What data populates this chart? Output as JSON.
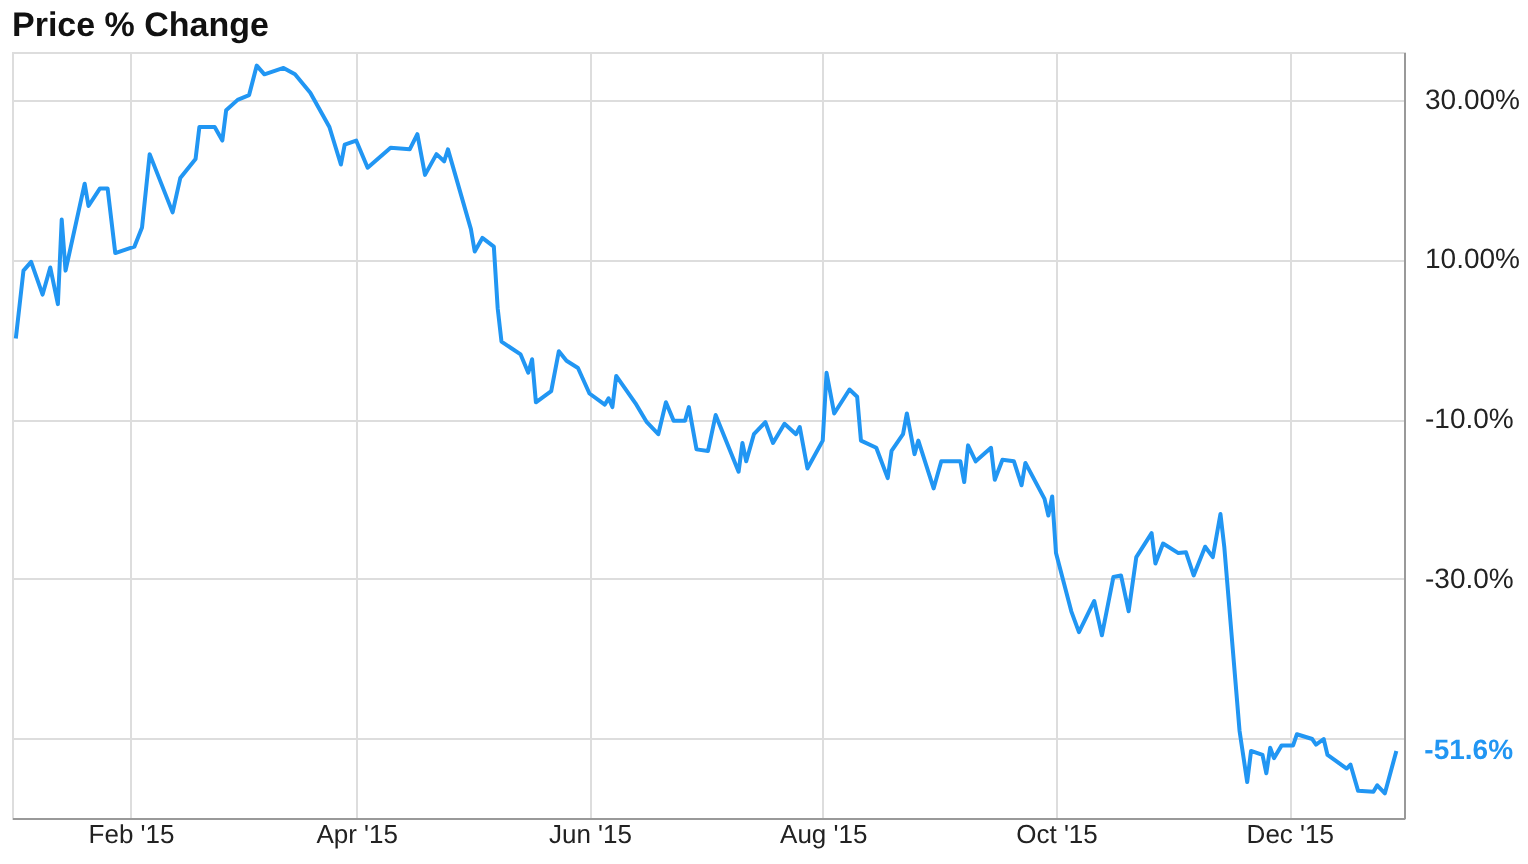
{
  "chart_data": {
    "type": "line",
    "title": "Price % Change",
    "x": [
      "2015-01-02",
      "2015-01-04",
      "2015-01-06",
      "2015-01-09",
      "2015-01-11",
      "2015-01-13",
      "2015-01-14",
      "2015-01-15",
      "2015-01-20",
      "2015-01-21",
      "2015-01-24",
      "2015-01-26",
      "2015-01-28",
      "2015-02-02",
      "2015-02-04",
      "2015-02-06",
      "2015-02-12",
      "2015-02-14",
      "2015-02-18",
      "2015-02-19",
      "2015-02-23",
      "2015-02-25",
      "2015-02-26",
      "2015-03-01",
      "2015-03-04",
      "2015-03-06",
      "2015-03-08",
      "2015-03-13",
      "2015-03-16",
      "2015-03-20",
      "2015-03-25",
      "2015-03-28",
      "2015-03-29",
      "2015-04-01",
      "2015-04-04",
      "2015-04-10",
      "2015-04-15",
      "2015-04-17",
      "2015-04-19",
      "2015-04-22",
      "2015-04-24",
      "2015-04-25",
      "2015-05-01",
      "2015-05-02",
      "2015-05-04",
      "2015-05-07",
      "2015-05-08",
      "2015-05-09",
      "2015-05-14",
      "2015-05-16",
      "2015-05-17",
      "2015-05-18",
      "2015-05-22",
      "2015-05-24",
      "2015-05-26",
      "2015-05-29",
      "2015-06-01",
      "2015-06-05",
      "2015-06-06",
      "2015-06-07",
      "2015-06-08",
      "2015-06-13",
      "2015-06-16",
      "2015-06-19",
      "2015-06-21",
      "2015-06-23",
      "2015-06-26",
      "2015-06-27",
      "2015-06-29",
      "2015-07-02",
      "2015-07-04",
      "2015-07-10",
      "2015-07-11",
      "2015-07-12",
      "2015-07-14",
      "2015-07-17",
      "2015-07-19",
      "2015-07-22",
      "2015-07-25",
      "2015-07-26",
      "2015-07-28",
      "2015-08-01",
      "2015-08-02",
      "2015-08-04",
      "2015-08-08",
      "2015-08-10",
      "2015-08-11",
      "2015-08-15",
      "2015-08-18",
      "2015-08-19",
      "2015-08-22",
      "2015-08-23",
      "2015-08-25",
      "2015-08-26",
      "2015-08-30",
      "2015-09-01",
      "2015-09-06",
      "2015-09-07",
      "2015-09-08",
      "2015-09-10",
      "2015-09-14",
      "2015-09-15",
      "2015-09-17",
      "2015-09-20",
      "2015-09-22",
      "2015-09-23",
      "2015-09-28",
      "2015-09-29",
      "2015-09-30",
      "2015-10-01",
      "2015-10-05",
      "2015-10-07",
      "2015-10-11",
      "2015-10-13",
      "2015-10-16",
      "2015-10-18",
      "2015-10-20",
      "2015-10-22",
      "2015-10-26",
      "2015-10-27",
      "2015-10-29",
      "2015-11-02",
      "2015-11-04",
      "2015-11-06",
      "2015-11-09",
      "2015-11-11",
      "2015-11-13",
      "2015-11-14",
      "2015-11-18",
      "2015-11-20",
      "2015-11-21",
      "2015-11-24",
      "2015-11-25",
      "2015-11-26",
      "2015-11-27",
      "2015-11-29",
      "2015-12-02",
      "2015-12-03",
      "2015-12-07",
      "2015-12-08",
      "2015-12-10",
      "2015-12-11",
      "2015-12-16",
      "2015-12-17",
      "2015-12-19",
      "2015-12-23",
      "2015-12-24",
      "2015-12-26",
      "2015-12-29"
    ],
    "series": [
      {
        "color": "#2196f3",
        "values": [
          0.1,
          8.6,
          9.7,
          5.6,
          9.0,
          4.4,
          15.0,
          8.6,
          19.5,
          16.7,
          18.9,
          18.9,
          10.8,
          11.6,
          14.0,
          23.2,
          15.9,
          20.2,
          22.6,
          26.6,
          26.6,
          24.9,
          28.7,
          30.0,
          30.6,
          34.3,
          33.2,
          34.0,
          33.2,
          30.9,
          26.6,
          21.9,
          24.4,
          24.9,
          21.5,
          24.0,
          23.8,
          25.7,
          20.6,
          23.2,
          22.3,
          23.8,
          13.8,
          11.0,
          12.7,
          11.6,
          3.9,
          -0.3,
          -1.9,
          -4.2,
          -2.5,
          -7.9,
          -6.5,
          -1.5,
          -2.7,
          -3.6,
          -6.8,
          -8.2,
          -7.4,
          -8.5,
          -4.6,
          -8.0,
          -10.4,
          -11.9,
          -7.9,
          -10.2,
          -10.2,
          -8.5,
          -13.8,
          -14.0,
          -9.5,
          -16.6,
          -13.0,
          -15.3,
          -11.9,
          -10.4,
          -13.0,
          -10.6,
          -11.9,
          -11.0,
          -16.2,
          -12.7,
          -4.2,
          -9.3,
          -6.3,
          -7.2,
          -12.7,
          -13.6,
          -17.4,
          -14.0,
          -11.9,
          -9.3,
          -14.4,
          -12.7,
          -18.7,
          -15.3,
          -15.3,
          -17.9,
          -13.3,
          -15.3,
          -13.6,
          -17.6,
          -15.1,
          -15.3,
          -18.3,
          -15.5,
          -20.0,
          -22.1,
          -19.7,
          -26.8,
          -34.1,
          -36.7,
          -32.8,
          -37.1,
          -29.8,
          -29.6,
          -34.1,
          -27.3,
          -24.3,
          -28.1,
          -25.6,
          -26.8,
          -26.7,
          -29.6,
          -26.0,
          -27.3,
          -21.9,
          -26.0,
          -49.1,
          -55.5,
          -51.6,
          -52.1,
          -54.4,
          -51.2,
          -52.5,
          -50.9,
          -50.9,
          -49.5,
          -50.1,
          -50.8,
          -50.1,
          -52.1,
          -53.8,
          -53.3,
          -56.6,
          -56.7,
          -55.9,
          -56.9,
          -51.6
        ]
      }
    ],
    "xlim": [
      "2015-01-01",
      "2015-12-31"
    ],
    "xticks": [
      {
        "value": "2015-02-01",
        "label": "Feb '15"
      },
      {
        "value": "2015-04-01",
        "label": "Apr '15"
      },
      {
        "value": "2015-06-01",
        "label": "Jun '15"
      },
      {
        "value": "2015-08-01",
        "label": "Aug '15"
      },
      {
        "value": "2015-10-01",
        "label": "Oct '15"
      },
      {
        "value": "2015-12-01",
        "label": "Dec '15"
      }
    ],
    "ylim": [
      -60,
      36
    ],
    "yticks": [
      {
        "value": 30,
        "label": "30.00%"
      },
      {
        "value": 10,
        "label": "10.00%"
      },
      {
        "value": -10,
        "label": "-10.0%"
      },
      {
        "value": -30,
        "label": "-30.0%"
      },
      {
        "value": -50,
        "label": null
      }
    ],
    "annotations": [
      {
        "text": "-51.6%",
        "x": "2015-12-29",
        "y": -51.6
      }
    ],
    "grid": true,
    "marker": "none",
    "line_style": "solid"
  }
}
